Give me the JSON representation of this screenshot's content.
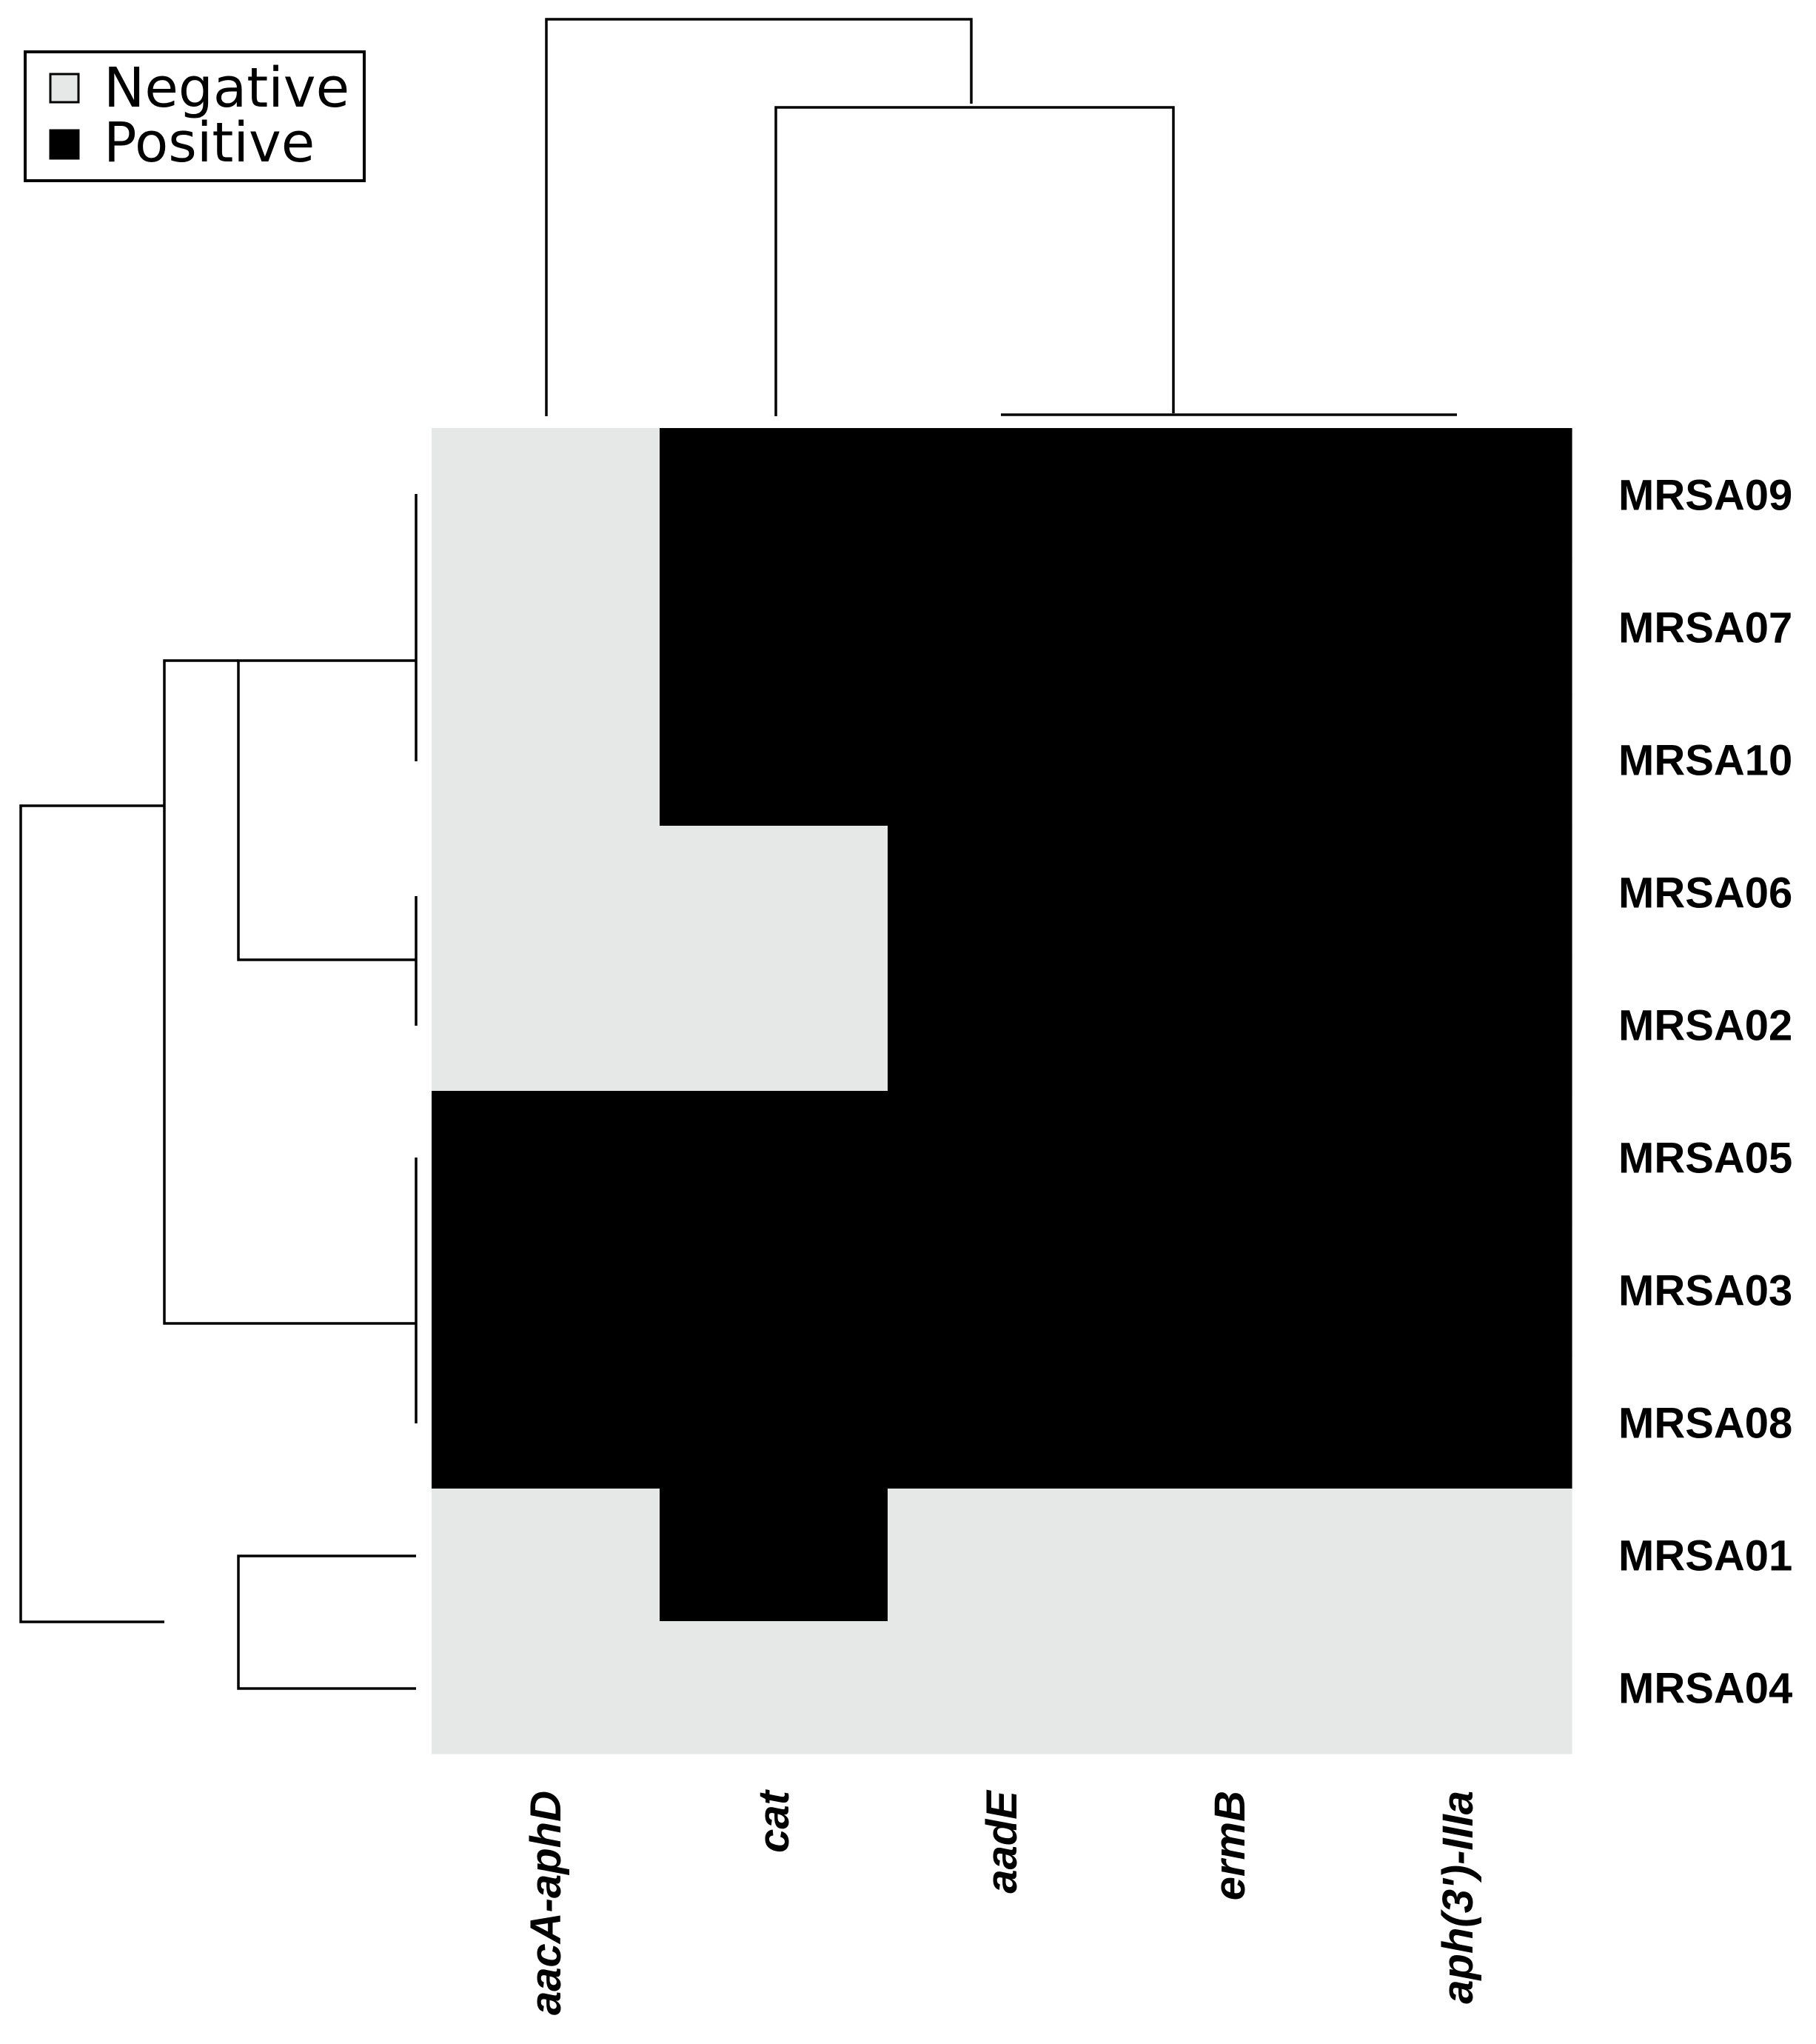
{
  "chart_data": {
    "type": "heatmap",
    "title": "",
    "xlabel": "",
    "ylabel": "",
    "legend": {
      "placement": "top-left",
      "entries": [
        {
          "label": "Negative",
          "value": 0,
          "color": "#e6e8e7"
        },
        {
          "label": "Positive",
          "value": 1,
          "color": "#000000"
        }
      ]
    },
    "columns": [
      "aacA-aphD",
      "cat",
      "aadE",
      "ermB",
      "aph(3')-IIIa"
    ],
    "rows": [
      "MRSA09",
      "MRSA07",
      "MRSA10",
      "MRSA06",
      "MRSA02",
      "MRSA05",
      "MRSA03",
      "MRSA08",
      "MRSA01",
      "MRSA04"
    ],
    "values": [
      [
        0,
        1,
        1,
        1,
        1
      ],
      [
        0,
        1,
        1,
        1,
        1
      ],
      [
        0,
        1,
        1,
        1,
        1
      ],
      [
        0,
        0,
        1,
        1,
        1
      ],
      [
        0,
        0,
        1,
        1,
        1
      ],
      [
        1,
        1,
        1,
        1,
        1
      ],
      [
        1,
        1,
        1,
        1,
        1
      ],
      [
        1,
        1,
        1,
        1,
        1
      ],
      [
        0,
        1,
        0,
        0,
        0
      ],
      [
        0,
        0,
        0,
        0,
        0
      ]
    ],
    "column_dendrogram": true,
    "row_dendrogram": true
  }
}
